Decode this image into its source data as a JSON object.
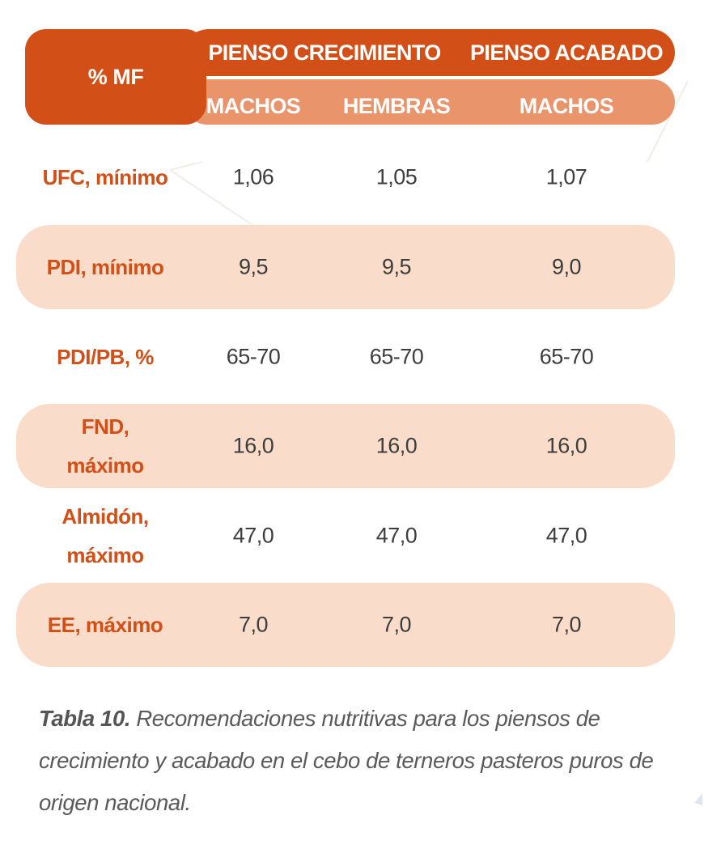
{
  "table": {
    "corner_header": "% MF",
    "group_headers": [
      "PIENSO CRECIMIENTO",
      "PIENSO ACABADO"
    ],
    "sub_headers": [
      "MACHOS",
      "HEMBRAS",
      "MACHOS"
    ],
    "rows": [
      {
        "label": "UFC, mínimo",
        "values": [
          "1,06",
          "1,05",
          "1,07"
        ],
        "shaded": false
      },
      {
        "label": "PDI, mínimo",
        "values": [
          "9,5",
          "9,5",
          "9,0"
        ],
        "shaded": true
      },
      {
        "label": "PDI/PB, %",
        "values": [
          "65-70",
          "65-70",
          "65-70"
        ],
        "shaded": false
      },
      {
        "label": "FND,\nmáximo",
        "values": [
          "16,0",
          "16,0",
          "16,0"
        ],
        "shaded": true
      },
      {
        "label": "Almidón,\nmáximo",
        "values": [
          "47,0",
          "47,0",
          "47,0"
        ],
        "shaded": false
      },
      {
        "label": "EE, máximo",
        "values": [
          "7,0",
          "7,0",
          "7,0"
        ],
        "shaded": true
      }
    ]
  },
  "caption": {
    "label": "Tabla 10.",
    "text": " Recomendaciones nutritivas para los piensos de crecimiento y acabado en el cebo de terneros pasteros puros de origen nacional."
  },
  "colors": {
    "header_dark": "#d24f17",
    "header_light": "#e9946a",
    "row_shade": "#f9dcc9",
    "label_text": "#d24f17",
    "value_text": "#3d3d3d"
  }
}
